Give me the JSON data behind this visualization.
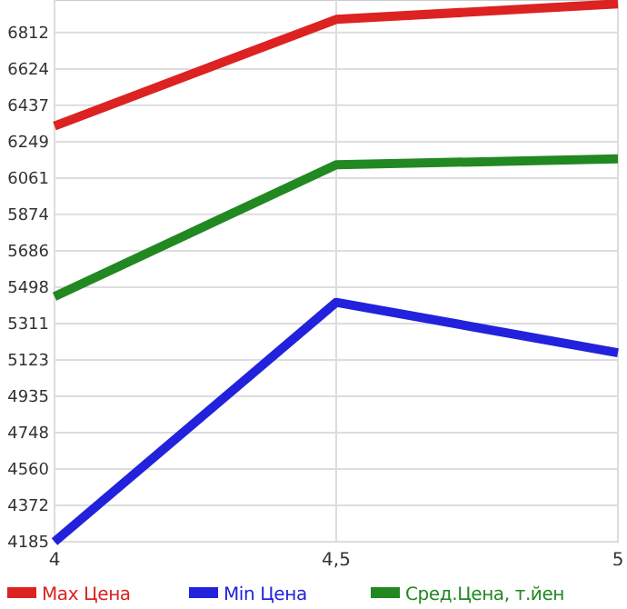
{
  "chart_data": {
    "type": "line",
    "x": [
      4,
      4.5,
      5
    ],
    "xlim": [
      4,
      5
    ],
    "xticks": [
      4,
      {
        "value": 4.5,
        "label": "4,5"
      },
      5
    ],
    "ylim": [
      4185,
      6980
    ],
    "yticks": [
      4185,
      4372,
      4560,
      4748,
      4935,
      5123,
      5311,
      5498,
      5686,
      5874,
      6061,
      6249,
      6437,
      6624,
      6812
    ],
    "grid": true,
    "legend": "bottom",
    "marker": "none",
    "series": [
      {
        "name": "Max Цена",
        "color": "#dd2222",
        "values": [
          6330,
          6880,
          6960
        ]
      },
      {
        "name": "Min Цена",
        "color": "#2222dd",
        "values": [
          4185,
          5420,
          5160
        ]
      },
      {
        "name": "Сред.Цена, т.йен",
        "color": "#228822",
        "values": [
          5450,
          6130,
          6160
        ]
      }
    ]
  }
}
